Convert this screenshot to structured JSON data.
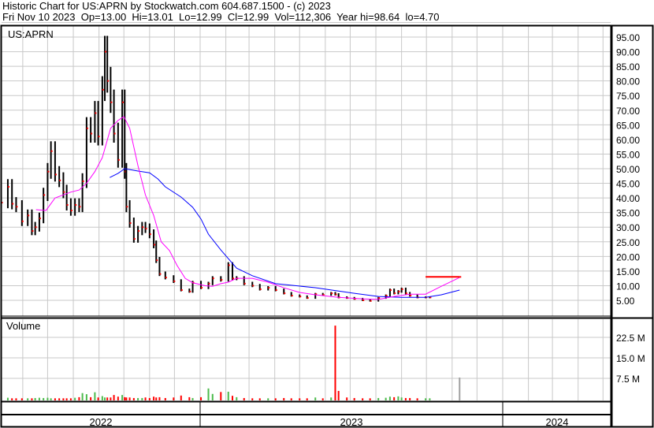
{
  "header": {
    "title": "Historic Chart for US:APRN by Stockwatch.com 604.687.1500 - (c) 2023",
    "quote": "Fri Nov 10 2023  Op=13.00  Hi=13.01  Lo=12.99  Cl=12.99  Vol=112,306  Year hi=98.64  lo=4.70"
  },
  "colors": {
    "short_ma": "#ff00ff",
    "long_ma": "#0000ff",
    "up_volume": "#4cbb4c",
    "down_volume": "#ff0000",
    "close_tick": "#ff0000",
    "grid": "#c8c8c8"
  },
  "chart_data": [
    {
      "type": "line",
      "title": "US:APRN",
      "price_ticks": [
        "95.00",
        "90.00",
        "85.00",
        "80.00",
        "75.00",
        "70.00",
        "65.00",
        "60.00",
        "55.00",
        "50.00",
        "45.00",
        "40.00",
        "35.00",
        "30.00",
        "25.00",
        "20.00",
        "15.00",
        "10.00",
        "5.00"
      ],
      "ylim": [
        1.5,
        100
      ],
      "grid": true,
      "dates": [
        "2022-05-06",
        "2022-05-14",
        "2022-05-19",
        "2022-05-24",
        "2022-05-31",
        "2022-06-07",
        "2022-06-12",
        "2022-06-16",
        "2022-06-21",
        "2022-06-26",
        "2022-07-01",
        "2022-07-05",
        "2022-07-10",
        "2022-07-15",
        "2022-07-20",
        "2022-07-24",
        "2022-07-29",
        "2022-08-03",
        "2022-08-08",
        "2022-08-12",
        "2022-08-17",
        "2022-08-22",
        "2022-08-27",
        "2022-08-31",
        "2022-09-05",
        "2022-09-08",
        "2022-09-11",
        "2022-09-15",
        "2022-09-19",
        "2022-09-24",
        "2022-09-29",
        "2022-10-02",
        "2022-10-04",
        "2022-10-08",
        "2022-10-13",
        "2022-10-18",
        "2022-10-23",
        "2022-10-27",
        "2022-11-01",
        "2022-11-06",
        "2022-11-09",
        "2022-11-13",
        "2022-11-20",
        "2022-11-30",
        "2022-12-09",
        "2022-12-19",
        "2022-12-23",
        "2023-01-02",
        "2023-01-11",
        "2023-01-16",
        "2023-01-26",
        "2023-02-04",
        "2023-02-09",
        "2023-02-14",
        "2023-02-23",
        "2023-03-05",
        "2023-03-14",
        "2023-03-24",
        "2023-04-02",
        "2023-04-12",
        "2023-04-21",
        "2023-05-01",
        "2023-05-10",
        "2023-05-20",
        "2023-05-29",
        "2023-06-08",
        "2023-06-13",
        "2023-06-17",
        "2023-06-27",
        "2023-07-06",
        "2023-07-16",
        "2023-07-25",
        "2023-08-04",
        "2023-08-13",
        "2023-08-18",
        "2023-08-23",
        "2023-08-28",
        "2023-09-01",
        "2023-09-06",
        "2023-09-11",
        "2023-09-20",
        "2023-09-30",
        "2023-10-05",
        "2023-11-10"
      ],
      "close": [
        38.4,
        43.8,
        38,
        37,
        32,
        34,
        28.7,
        30,
        33,
        41,
        49,
        56,
        48,
        46,
        42,
        37.6,
        35.7,
        37.6,
        37,
        45.7,
        63.8,
        62,
        69,
        61,
        77,
        90,
        80,
        72.7,
        62,
        53,
        72.7,
        49,
        37,
        31.4,
        26,
        28.7,
        30,
        29.5,
        27.6,
        24,
        18.7,
        14,
        12.8,
        11.5,
        8.5,
        8,
        11,
        9.3,
        10.7,
        12.5,
        12,
        17,
        12.5,
        12.5,
        10.7,
        10,
        8.8,
        9.3,
        8.5,
        7.4,
        6.6,
        6.3,
        5.8,
        7.1,
        6.9,
        7.4,
        7,
        6,
        5.8,
        5.5,
        5,
        4.8,
        5.8,
        6.6,
        8.5,
        7.4,
        8,
        8.8,
        7.4,
        6.6,
        6,
        6,
        6,
        13
      ],
      "short_ma": [
        [
          "2022-06-17",
          36
        ],
        [
          "2022-06-29",
          35.7
        ],
        [
          "2022-07-10",
          40
        ],
        [
          "2022-07-29",
          42
        ],
        [
          "2022-08-08",
          42.7
        ],
        [
          "2022-08-17",
          45
        ],
        [
          "2022-08-27",
          49
        ],
        [
          "2022-09-05",
          53.8
        ],
        [
          "2022-09-15",
          63.8
        ],
        [
          "2022-09-24",
          66.5
        ],
        [
          "2022-10-01",
          67.8
        ],
        [
          "2022-10-08",
          63.8
        ],
        [
          "2022-10-18",
          51
        ],
        [
          "2022-10-27",
          41
        ],
        [
          "2022-11-06",
          34
        ],
        [
          "2022-11-15",
          25
        ],
        [
          "2022-11-25",
          22
        ],
        [
          "2022-12-04",
          17
        ],
        [
          "2022-12-14",
          12.5
        ],
        [
          "2022-12-23",
          11
        ],
        [
          "2023-01-07",
          10
        ],
        [
          "2023-01-16",
          9.8
        ],
        [
          "2023-01-26",
          10.7
        ],
        [
          "2023-02-04",
          11.2
        ],
        [
          "2023-02-14",
          12.5
        ],
        [
          "2023-03-05",
          12.5
        ],
        [
          "2023-03-24",
          11.2
        ],
        [
          "2023-04-12",
          9.3
        ],
        [
          "2023-05-01",
          7.7
        ],
        [
          "2023-05-20",
          6.9
        ],
        [
          "2023-06-17",
          6
        ],
        [
          "2023-07-16",
          5.5
        ],
        [
          "2023-08-04",
          5.3
        ],
        [
          "2023-08-23",
          6.3
        ],
        [
          "2023-09-11",
          7.1
        ],
        [
          "2023-09-30",
          7.1
        ],
        [
          "2023-10-19",
          9.8
        ],
        [
          "2023-11-10",
          12.8
        ]
      ],
      "long_ma": [
        [
          "2022-09-14",
          47
        ],
        [
          "2022-09-24",
          48.4
        ],
        [
          "2022-10-02",
          50
        ],
        [
          "2022-10-18",
          49.2
        ],
        [
          "2022-11-01",
          48.6
        ],
        [
          "2022-11-11",
          46.5
        ],
        [
          "2022-11-20",
          43.8
        ],
        [
          "2022-12-09",
          40.3
        ],
        [
          "2022-12-23",
          36.8
        ],
        [
          "2023-01-02",
          32.8
        ],
        [
          "2023-01-11",
          27.6
        ],
        [
          "2023-01-26",
          22.2
        ],
        [
          "2023-02-14",
          16
        ],
        [
          "2023-03-05",
          13.4
        ],
        [
          "2023-04-02",
          10.7
        ],
        [
          "2023-05-20",
          9.3
        ],
        [
          "2023-07-06",
          7.4
        ],
        [
          "2023-08-04",
          6.3
        ],
        [
          "2023-09-01",
          6
        ],
        [
          "2023-09-30",
          6
        ],
        [
          "2023-10-19",
          6.9
        ],
        [
          "2023-11-10",
          8.5
        ]
      ]
    },
    {
      "type": "bar",
      "title": "Volume",
      "volume_ticks": [
        "22.5 M",
        "15.0 M",
        "7.5 M"
      ],
      "ylim": [
        0,
        30
      ],
      "unit": "M",
      "volume": [
        0.3,
        0.4,
        0.2,
        0.2,
        0.2,
        0.2,
        0.2,
        0.3,
        0.4,
        0.3,
        0.4,
        0.2,
        0.2,
        0.2,
        0.2,
        0.2,
        0.2,
        0.4,
        0.6,
        2.1,
        1.7,
        0.6,
        2.4,
        0.5,
        1.0,
        0.5,
        0.5,
        0.5,
        1.4,
        0.8,
        1.4,
        0.6,
        0.5,
        0.5,
        0.3,
        0.3,
        0.3,
        0.5,
        0.3,
        0.8,
        0.5,
        0.6,
        0.3,
        0.5,
        1.2,
        0.6,
        0.3,
        0.6,
        3.8,
        1.8,
        2.5,
        2.6,
        1.1,
        0.6,
        0.3,
        0.2,
        0.2,
        0.2,
        0.2,
        0.3,
        0.2,
        0.2,
        0.2,
        0.5,
        0.2,
        0.5,
        26.8,
        2.9,
        0.5,
        0.3,
        0.2,
        0.2,
        0.3,
        0.4,
        0.8,
        0.6,
        0.9,
        0.5,
        0.3,
        0.3,
        0.2,
        0.2,
        0.2,
        7.8
      ]
    }
  ],
  "x_axis": {
    "years": [
      "2022",
      "2023",
      "2024"
    ]
  }
}
